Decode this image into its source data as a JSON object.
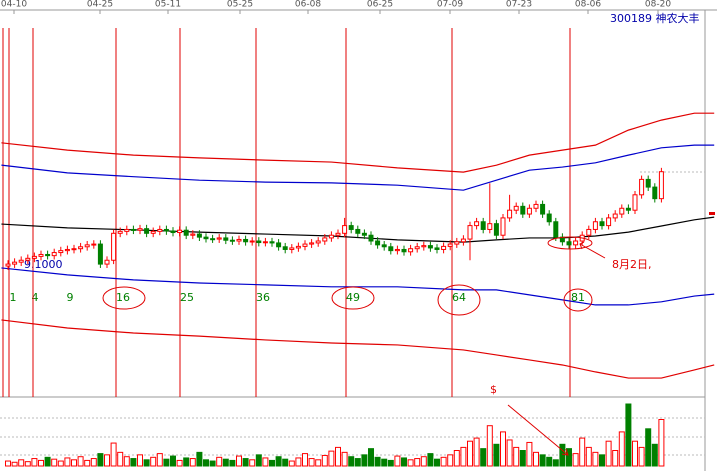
{
  "chart_data": {
    "type": "candlestick",
    "title": "300189 神农大丰",
    "dates": [
      "04-10",
      "04-25",
      "05-11",
      "05-25",
      "06-08",
      "06-25",
      "07-09",
      "07-23",
      "08-06",
      "08-20"
    ],
    "open": [
      33.5,
      34,
      34.5,
      35,
      35.5,
      36,
      36.5,
      36.2,
      37,
      37.5,
      37.8,
      38,
      38.5,
      39,
      39.2,
      34,
      35,
      42,
      42.5,
      43,
      42.8,
      43.2,
      42,
      42.5,
      43,
      42.6,
      42.2,
      42.8,
      41.5,
      41.8,
      41,
      40.6,
      40.5,
      40.8,
      40.2,
      40,
      40.4,
      39.8,
      40,
      39.6,
      39.8,
      39.5,
      38.5,
      37.8,
      38.2,
      38.6,
      39.2,
      39.5,
      40,
      40.8,
      41.5,
      42,
      44,
      43,
      42,
      41.5,
      40,
      39,
      38.5,
      37.5,
      37.8,
      37.2,
      38,
      38.5,
      38.8,
      38.2,
      37.8,
      38.6,
      39.2,
      39.8,
      40.5,
      44,
      45,
      43,
      44.5,
      41.5,
      46,
      48,
      49,
      47,
      48.5,
      49.5,
      47,
      45,
      41,
      39.8,
      39,
      40,
      41.5,
      43,
      45,
      44,
      46,
      47,
      48.5,
      48,
      52,
      56,
      54,
      51
    ],
    "high": [
      35,
      35.5,
      36,
      36.5,
      37,
      37.5,
      37.5,
      38,
      38.5,
      38.8,
      39,
      39.5,
      40,
      40.2,
      40.2,
      36,
      43,
      43.5,
      44,
      44,
      44.2,
      44.2,
      43.5,
      44,
      44,
      43.6,
      43.8,
      43.8,
      42.8,
      42.8,
      42,
      41.6,
      41.8,
      41.8,
      41.2,
      41.4,
      41.4,
      41,
      41,
      40.8,
      40.8,
      40.5,
      39.5,
      39.2,
      39.6,
      40.2,
      40.5,
      41,
      41.8,
      42.5,
      43,
      46,
      45,
      44,
      43,
      42.5,
      41,
      40,
      39.5,
      38.8,
      38.8,
      39,
      39.5,
      39.8,
      39.8,
      39.2,
      39.6,
      40.2,
      40.8,
      41.5,
      45,
      46,
      46,
      55,
      45.5,
      47,
      52,
      50,
      50,
      49.5,
      50.5,
      50.5,
      48,
      46,
      42,
      40.8,
      41,
      42.5,
      44,
      46,
      46,
      47,
      48,
      49.5,
      49.5,
      53,
      57,
      57,
      55,
      59
    ],
    "low": [
      32.5,
      33,
      33.5,
      34,
      34.5,
      35,
      35.2,
      35.2,
      36,
      36.5,
      36.8,
      37,
      37.5,
      38,
      33,
      33,
      34,
      41,
      41.5,
      41.8,
      41.8,
      41,
      41,
      41.5,
      41.6,
      41.2,
      41.2,
      40.5,
      40.5,
      40,
      39.6,
      39.5,
      39.5,
      39.2,
      39,
      39,
      38.8,
      38.8,
      38.6,
      38.6,
      38.5,
      37.5,
      36.8,
      36.8,
      37.2,
      37.6,
      38.2,
      38.5,
      39,
      39.8,
      40.5,
      41,
      42,
      41,
      40.5,
      39,
      38,
      37.5,
      36.5,
      36.5,
      36.2,
      36.2,
      37,
      37.5,
      37.2,
      36.8,
      36.8,
      37.6,
      38.2,
      38.8,
      35,
      43,
      42,
      42,
      40.5,
      40.5,
      45,
      47,
      46,
      46,
      47.5,
      46,
      44,
      40,
      38.8,
      38,
      38,
      39,
      40.5,
      42,
      43,
      43,
      45,
      46,
      47,
      47,
      51,
      53,
      50,
      50
    ],
    "close": [
      34,
      34.5,
      35,
      35.5,
      36,
      36.5,
      36.2,
      37,
      37.5,
      37.8,
      38,
      38.5,
      39,
      39.2,
      34,
      35,
      42,
      42.5,
      43,
      42.8,
      43.2,
      42,
      42.5,
      43,
      42.6,
      42.2,
      42.8,
      41.5,
      41.8,
      41,
      40.6,
      40.5,
      40.8,
      40.2,
      40,
      40.4,
      39.8,
      40,
      39.6,
      39.8,
      39.5,
      38.5,
      37.8,
      38.2,
      38.6,
      39.2,
      39.5,
      40,
      40.8,
      41.5,
      42,
      44,
      43,
      42,
      41.5,
      40,
      39,
      38.5,
      37.5,
      37.8,
      37.2,
      38,
      38.5,
      38.8,
      38.2,
      37.8,
      38.6,
      39.2,
      39.8,
      40.5,
      44,
      45,
      43,
      44.5,
      41.5,
      46,
      48,
      49,
      47,
      48.5,
      49.5,
      47,
      45,
      41,
      39.8,
      39,
      40,
      41.5,
      43,
      45,
      44,
      46,
      47,
      48.5,
      48,
      52,
      56,
      54,
      51,
      58
    ],
    "up_color": "#ff0000",
    "down_color": "#008000",
    "ylim": [
      0,
      100
    ],
    "bands": {
      "x": [
        -1,
        9,
        19,
        29,
        39,
        49,
        59,
        69,
        74,
        79,
        84,
        89,
        94,
        99,
        104,
        107
      ],
      "series": [
        {
          "color": "#e00000",
          "values": [
            65.5,
            63.6,
            62.3,
            61.6,
            61,
            60.5,
            59,
            57.9,
            59.7,
            62.3,
            63.6,
            64.9,
            68.8,
            71.4,
            73.2,
            73.2
          ]
        },
        {
          "color": "#0000cc",
          "values": [
            59.7,
            57.7,
            56.7,
            55.8,
            55.3,
            55.1,
            54.5,
            53.2,
            55.8,
            58.4,
            59.2,
            60.3,
            62.3,
            64.2,
            64.9,
            64.9
          ]
        },
        {
          "color": "#000000",
          "values": [
            44.4,
            43.4,
            42.9,
            42.3,
            41.8,
            41.3,
            40.3,
            39.7,
            40.3,
            40.8,
            40.8,
            41.3,
            42.3,
            43.9,
            45.5,
            46.2
          ]
        },
        {
          "color": "#0000cc",
          "values": [
            33,
            31.2,
            29.9,
            29.1,
            28.6,
            28.1,
            28.1,
            27.3,
            27.3,
            26,
            24.7,
            23.4,
            23.4,
            24.2,
            25.7,
            26.2
          ]
        },
        {
          "color": "#e00000",
          "values": [
            19.5,
            17.4,
            16.1,
            15.3,
            14.3,
            13.5,
            13,
            11.7,
            10.4,
            9.1,
            7.8,
            6,
            4.4,
            4.4,
            6.5,
            7.8
          ]
        }
      ]
    },
    "volume": {
      "ylim": [
        0,
        100
      ],
      "values": [
        8,
        6,
        10,
        7,
        12,
        9,
        14,
        11,
        8,
        13,
        10,
        15,
        9,
        12,
        20,
        18,
        37,
        22,
        15,
        12,
        18,
        10,
        14,
        20,
        11,
        16,
        9,
        13,
        12,
        22,
        10,
        8,
        14,
        11,
        9,
        16,
        12,
        10,
        18,
        13,
        9,
        15,
        11,
        8,
        13,
        20,
        12,
        10,
        17,
        24,
        30,
        22,
        15,
        12,
        18,
        28,
        14,
        11,
        9,
        16,
        13,
        10,
        12,
        15,
        20,
        11,
        14,
        18,
        25,
        30,
        40,
        45,
        28,
        65,
        35,
        55,
        42,
        30,
        25,
        38,
        22,
        18,
        14,
        10,
        35,
        28,
        20,
        45,
        30,
        22,
        18,
        40,
        25,
        55,
        100,
        40,
        30,
        60,
        35,
        75
      ]
    },
    "cycle_days": [
      1,
      4,
      9,
      16,
      25,
      36,
      49,
      64,
      81
    ],
    "price_label": "9.1000",
    "note": "8月2日,",
    "volume_note": "$"
  }
}
